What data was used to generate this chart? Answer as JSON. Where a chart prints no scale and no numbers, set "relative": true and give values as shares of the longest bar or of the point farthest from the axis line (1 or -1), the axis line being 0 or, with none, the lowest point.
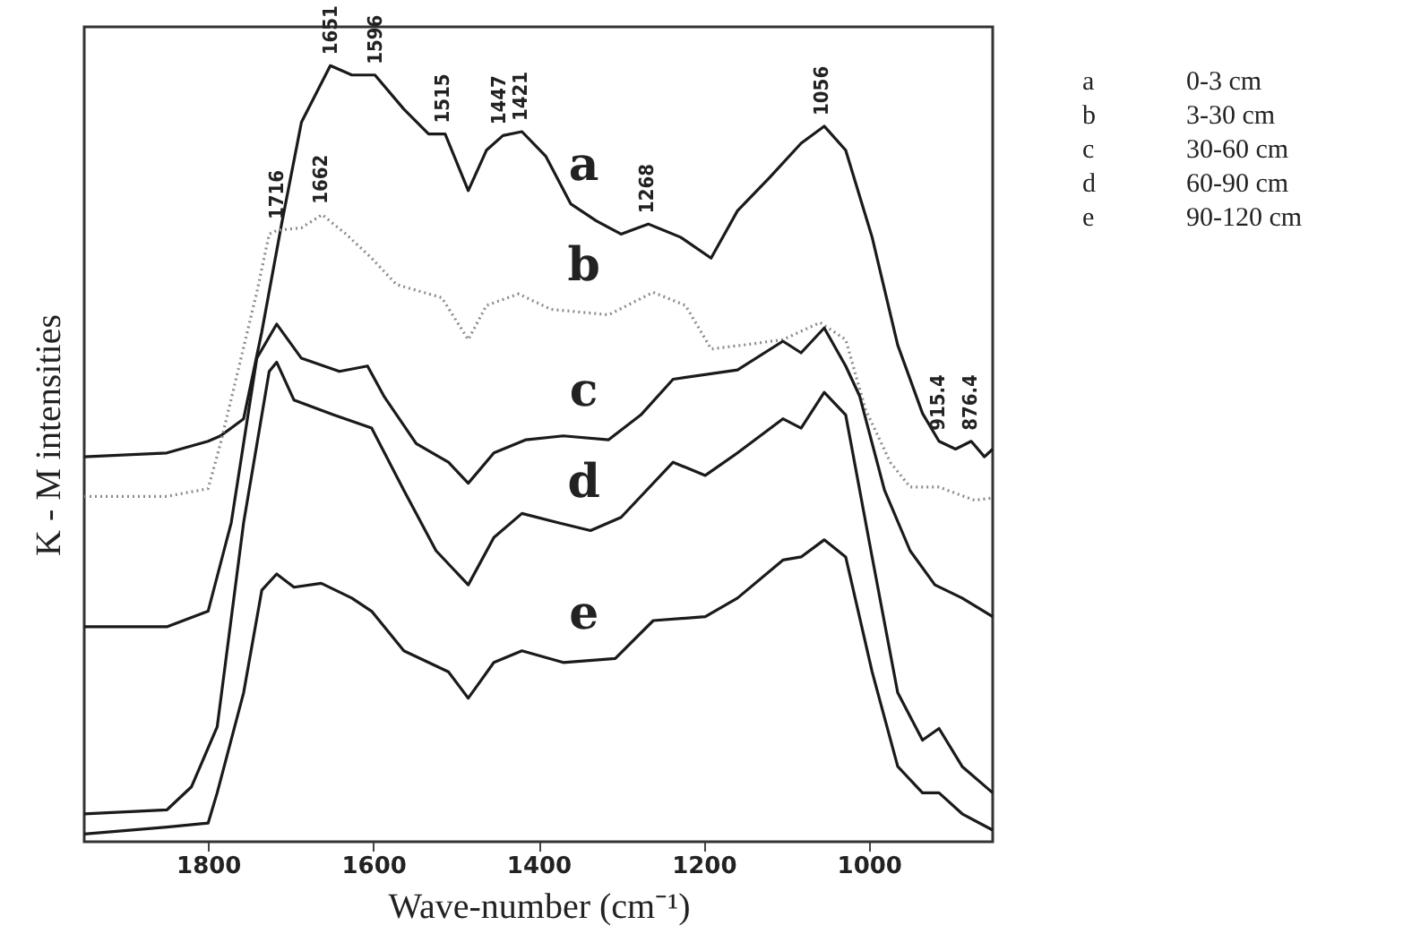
{
  "chart_data": {
    "type": "line",
    "relative": true,
    "xlabel": "Wave-number (cm⁻¹)",
    "ylabel": "K - M intensities",
    "xlim": [
      1950,
      850
    ],
    "xticks": [
      1800,
      1600,
      1400,
      1200,
      1000
    ],
    "grid": false,
    "marker": "none",
    "legend": "right",
    "series": [
      {
        "name": "0-3 cm",
        "color": "#1a1a1a",
        "line_style": "solid",
        "x": [
          1950,
          1850,
          1800,
          1785,
          1757,
          1735,
          1711,
          1687,
          1652,
          1626,
          1598,
          1563,
          1533,
          1513,
          1485,
          1463,
          1443,
          1420,
          1391,
          1361,
          1330,
          1300,
          1267,
          1228,
          1191,
          1159,
          1120,
          1082,
          1054,
          1028,
          996,
          965,
          935,
          915,
          895,
          876,
          860,
          850
        ],
        "values": [
          0.496,
          0.501,
          0.516,
          0.523,
          0.545,
          0.657,
          0.796,
          0.927,
          1.0,
          0.988,
          0.988,
          0.944,
          0.912,
          0.912,
          0.839,
          0.891,
          0.91,
          0.915,
          0.883,
          0.822,
          0.8,
          0.783,
          0.796,
          0.779,
          0.752,
          0.813,
          0.856,
          0.9,
          0.922,
          0.891,
          0.779,
          0.64,
          0.552,
          0.516,
          0.506,
          0.516,
          0.496,
          0.506
        ]
      },
      {
        "name": "3-30 cm",
        "color": "#8c8c8c",
        "line_style": "dotted",
        "x": [
          1950,
          1850,
          1800,
          1785,
          1741,
          1726,
          1716,
          1687,
          1662,
          1633,
          1602,
          1572,
          1517,
          1485,
          1463,
          1424,
          1385,
          1315,
          1261,
          1222,
          1191,
          1152,
          1104,
          1059,
          1028,
          1004,
          974,
          950,
          915,
          872,
          850
        ],
        "values": [
          0.445,
          0.445,
          0.455,
          0.513,
          0.708,
          0.783,
          0.788,
          0.791,
          0.808,
          0.783,
          0.752,
          0.718,
          0.701,
          0.647,
          0.691,
          0.706,
          0.686,
          0.679,
          0.708,
          0.691,
          0.635,
          0.64,
          0.647,
          0.669,
          0.647,
          0.557,
          0.489,
          0.457,
          0.457,
          0.44,
          0.443
        ]
      },
      {
        "name": "30-60 cm",
        "color": "#1a1a1a",
        "line_style": "solid",
        "x": [
          1950,
          1850,
          1800,
          1772,
          1741,
          1717,
          1687,
          1641,
          1607,
          1587,
          1548,
          1509,
          1485,
          1454,
          1415,
          1370,
          1315,
          1276,
          1237,
          1159,
          1104,
          1082,
          1054,
          1028,
          1011,
          981,
          950,
          920,
          887,
          850
        ],
        "values": [
          0.277,
          0.277,
          0.297,
          0.411,
          0.623,
          0.667,
          0.623,
          0.606,
          0.613,
          0.574,
          0.513,
          0.489,
          0.462,
          0.501,
          0.518,
          0.523,
          0.518,
          0.55,
          0.596,
          0.608,
          0.645,
          0.63,
          0.662,
          0.613,
          0.574,
          0.453,
          0.375,
          0.331,
          0.314,
          0.29
        ]
      },
      {
        "name": "60-90 cm",
        "color": "#1a1a1a",
        "line_style": "solid",
        "x": [
          1950,
          1850,
          1820,
          1789,
          1757,
          1726,
          1717,
          1696,
          1648,
          1602,
          1563,
          1524,
          1485,
          1454,
          1420,
          1376,
          1337,
          1300,
          1237,
          1198,
          1159,
          1104,
          1082,
          1054,
          1028,
          996,
          965,
          935,
          915,
          887,
          850
        ],
        "values": [
          0.036,
          0.041,
          0.071,
          0.148,
          0.411,
          0.606,
          0.618,
          0.569,
          0.55,
          0.533,
          0.453,
          0.375,
          0.331,
          0.392,
          0.423,
          0.411,
          0.401,
          0.418,
          0.489,
          0.472,
          0.501,
          0.545,
          0.533,
          0.579,
          0.55,
          0.367,
          0.192,
          0.131,
          0.146,
          0.097,
          0.063
        ]
      },
      {
        "name": "90-120 cm",
        "color": "#1a1a1a",
        "line_style": "solid",
        "x": [
          1950,
          1850,
          1800,
          1789,
          1757,
          1735,
          1717,
          1696,
          1663,
          1626,
          1602,
          1563,
          1509,
          1485,
          1454,
          1420,
          1370,
          1307,
          1261,
          1198,
          1159,
          1104,
          1082,
          1054,
          1028,
          996,
          965,
          935,
          915,
          887,
          850
        ],
        "values": [
          0.01,
          0.019,
          0.024,
          0.063,
          0.192,
          0.324,
          0.345,
          0.328,
          0.333,
          0.314,
          0.297,
          0.246,
          0.219,
          0.185,
          0.231,
          0.246,
          0.231,
          0.236,
          0.285,
          0.29,
          0.314,
          0.363,
          0.367,
          0.389,
          0.367,
          0.219,
          0.097,
          0.063,
          0.063,
          0.036,
          0.015
        ]
      }
    ],
    "annotations": [
      "a",
      "b",
      "c",
      "d",
      "e",
      {
        "text": "1651",
        "x": 1651,
        "y": 1.0
      },
      {
        "text": "1596",
        "x": 1596,
        "y": 0.988
      },
      {
        "text": "1515",
        "x": 1515,
        "y": 0.912
      },
      {
        "text": "1447",
        "x": 1447,
        "y": 0.91
      },
      {
        "text": "1421",
        "x": 1421,
        "y": 0.915
      },
      {
        "text": "1268",
        "x": 1268,
        "y": 0.796
      },
      {
        "text": "1056",
        "x": 1056,
        "y": 0.922
      },
      {
        "text": "915.4",
        "x": 915.4,
        "y": 0.516
      },
      {
        "text": "876.4",
        "x": 876.4,
        "y": 0.516
      },
      {
        "text": "1716",
        "x": 1716,
        "y": 0.788
      },
      {
        "text": "1662",
        "x": 1662,
        "y": 0.808
      }
    ]
  }
}
